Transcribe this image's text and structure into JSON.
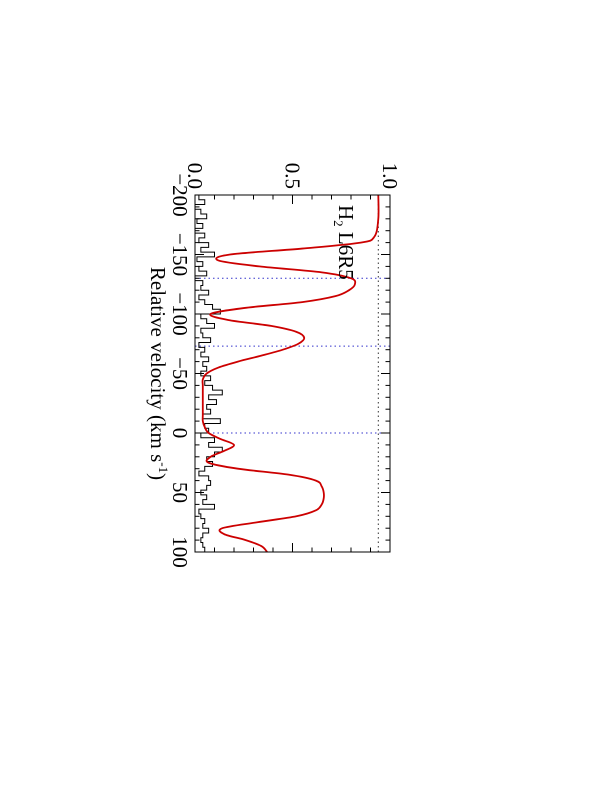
{
  "chart_data": {
    "type": "line",
    "orientation": "rotated-90-clockwise",
    "title": "",
    "xlabel": "Relative velocity (km s",
    "xlabel_sup": "-1",
    "xlabel_close": ")",
    "ylabel": "",
    "annotation": {
      "species": "H",
      "subscript": "2",
      "transition": "L6R5"
    },
    "xlim": [
      -200,
      100
    ],
    "ylim": [
      0.0,
      1.0
    ],
    "x_ticks": [
      -200,
      -150,
      -100,
      -50,
      0,
      50,
      100
    ],
    "x_tick_labels": [
      "−200",
      "−150",
      "−100",
      "−50",
      "0",
      "50",
      "100"
    ],
    "y_ticks": [
      0.0,
      0.5,
      1.0
    ],
    "y_tick_labels": [
      "0.0",
      "0.5",
      "1.0"
    ],
    "continuum_level": 0.94,
    "reference_velocities": [
      -130,
      -73,
      0
    ],
    "colors": {
      "data": "#000000",
      "model": "#cc0000",
      "continuum": "#333333",
      "reference": "#3333cc"
    },
    "series": [
      {
        "kind": "model",
        "x": [
          -200,
          -180,
          -165,
          -160,
          -155,
          -150,
          -145,
          -140,
          -135,
          -130,
          -125,
          -120,
          -115,
          -110,
          -105,
          -100,
          -95,
          -90,
          -85,
          -80,
          -75,
          -70,
          -65,
          -60,
          -55,
          -50,
          -45,
          -40,
          -35,
          -30,
          -25,
          -20,
          -15,
          -10,
          -5,
          0,
          5,
          10,
          15,
          20,
          25,
          30,
          35,
          40,
          45,
          50,
          55,
          60,
          65,
          70,
          75,
          80,
          85,
          90,
          95,
          100
        ],
        "y": [
          0.94,
          0.94,
          0.92,
          0.85,
          0.55,
          0.18,
          0.12,
          0.33,
          0.65,
          0.8,
          0.82,
          0.79,
          0.72,
          0.55,
          0.25,
          0.08,
          0.17,
          0.39,
          0.52,
          0.56,
          0.53,
          0.45,
          0.34,
          0.22,
          0.12,
          0.06,
          0.04,
          0.04,
          0.04,
          0.04,
          0.04,
          0.04,
          0.04,
          0.04,
          0.05,
          0.07,
          0.13,
          0.2,
          0.15,
          0.08,
          0.07,
          0.22,
          0.48,
          0.62,
          0.65,
          0.66,
          0.66,
          0.65,
          0.62,
          0.52,
          0.32,
          0.14,
          0.15,
          0.26,
          0.34,
          0.37
        ]
      },
      {
        "kind": "data",
        "x": [
          -200,
          -196,
          -192,
          -188,
          -184,
          -180,
          -176,
          -172,
          -168,
          -164,
          -160,
          -156,
          -152,
          -148,
          -144,
          -140,
          -136,
          -132,
          -128,
          -124,
          -120,
          -116,
          -112,
          -108,
          -104,
          -100,
          -96,
          -92,
          -88,
          -84,
          -80,
          -76,
          -72,
          -68,
          -64,
          -60,
          -56,
          -52,
          -48,
          -44,
          -40,
          -36,
          -32,
          -28,
          -24,
          -20,
          -16,
          -12,
          -8,
          -4,
          0,
          4,
          8,
          12,
          16,
          20,
          24,
          28,
          32,
          36,
          40,
          44,
          48,
          52,
          56,
          60,
          64,
          68,
          72,
          76,
          80,
          84,
          88,
          92,
          96,
          100
        ],
        "y": [
          0.02,
          0.05,
          -0.01,
          0.03,
          0.06,
          0.01,
          0.04,
          -0.01,
          0.05,
          0.02,
          0.07,
          0.03,
          0.1,
          0.01,
          0.04,
          0.02,
          0.06,
          -0.01,
          0.04,
          0.03,
          0.07,
          0.02,
          0.05,
          0.09,
          0.13,
          0.03,
          0.06,
          0.1,
          0.03,
          0.04,
          0.08,
          0.02,
          0.05,
          0.03,
          0.07,
          0.04,
          0.06,
          0.03,
          0.08,
          0.05,
          0.09,
          0.14,
          0.07,
          0.11,
          0.06,
          0.08,
          0.04,
          0.13,
          0.05,
          0.07,
          0.03,
          0.1,
          0.07,
          0.14,
          0.1,
          0.06,
          0.09,
          0.05,
          0.02,
          0.07,
          0.08,
          0.06,
          0.03,
          0.06,
          0.04,
          0.1,
          0.02,
          0.03,
          0.05,
          0.04,
          0.07,
          0.04,
          0.03,
          0.04,
          0.05,
          0.04
        ]
      }
    ]
  }
}
